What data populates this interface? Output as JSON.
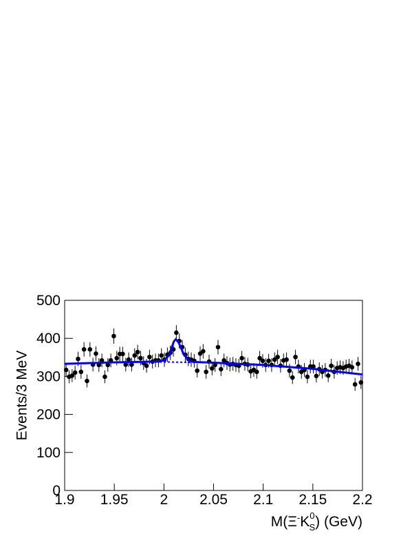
{
  "chart_data": {
    "type": "scatter",
    "y_label": "Events/3 MeV",
    "x_label": {
      "prefix": "M(Ξ",
      "sup1": "-",
      "main": "K",
      "sub": "S",
      "sup2": "0",
      "suffix": ") (GeV)"
    },
    "xlim": [
      1.9,
      2.2
    ],
    "ylim": [
      0,
      500
    ],
    "xticks": [
      1.9,
      1.95,
      2,
      2.05,
      2.1,
      2.15,
      2.2
    ],
    "yticks": [
      0,
      100,
      200,
      300,
      400,
      500
    ],
    "series": [
      {
        "kind": "points",
        "color": "#000000",
        "x": [
          1.9015,
          1.9045,
          1.9075,
          1.9105,
          1.9135,
          1.9165,
          1.9195,
          1.9225,
          1.9255,
          1.9285,
          1.9315,
          1.9345,
          1.9375,
          1.9405,
          1.9435,
          1.9465,
          1.9495,
          1.9525,
          1.9555,
          1.9585,
          1.9615,
          1.9645,
          1.9675,
          1.9705,
          1.9735,
          1.9765,
          1.9795,
          1.9825,
          1.9855,
          1.9885,
          1.9915,
          1.9945,
          1.9975,
          2.0005,
          2.0035,
          2.0065,
          2.0095,
          2.0125,
          2.0155,
          2.0185,
          2.0215,
          2.0245,
          2.0275,
          2.0305,
          2.0335,
          2.0365,
          2.0395,
          2.0425,
          2.0455,
          2.0485,
          2.0515,
          2.0545,
          2.0575,
          2.0605,
          2.0635,
          2.0665,
          2.0695,
          2.0725,
          2.0755,
          2.0785,
          2.0815,
          2.0845,
          2.0875,
          2.0905,
          2.0935,
          2.0965,
          2.0995,
          2.1025,
          2.1055,
          2.1085,
          2.1115,
          2.1145,
          2.1175,
          2.1205,
          2.1235,
          2.1265,
          2.1295,
          2.1325,
          2.1355,
          2.1385,
          2.1415,
          2.1445,
          2.1475,
          2.1505,
          2.1535,
          2.1565,
          2.1595,
          2.1625,
          2.1655,
          2.1685,
          2.1715,
          2.1745,
          2.1775,
          2.1805,
          2.1835,
          2.1865,
          2.1895,
          2.1925,
          2.1955,
          2.1985
        ],
        "values": [
          317,
          299,
          302,
          310,
          346,
          312,
          371,
          288,
          371,
          331,
          360,
          330,
          342,
          299,
          330,
          342,
          406,
          348,
          359,
          359,
          331,
          344,
          331,
          355,
          364,
          348,
          335,
          328,
          351,
          339,
          342,
          342,
          355,
          344,
          357,
          362,
          371,
          415,
          393,
          377,
          357,
          346,
          344,
          341,
          315,
          360,
          366,
          312,
          339,
          321,
          330,
          377,
          319,
          342,
          335,
          331,
          333,
          330,
          328,
          348,
          333,
          331,
          313,
          317,
          312,
          348,
          341,
          330,
          341,
          330,
          344,
          351,
          328,
          342,
          344,
          315,
          297,
          351,
          326,
          312,
          317,
          299,
          326,
          326,
          301,
          319,
          312,
          317,
          302,
          328,
          312,
          322,
          324,
          322,
          326,
          328,
          324,
          279,
          333,
          284
        ],
        "errors": [
          18,
          17,
          17,
          18,
          19,
          18,
          19,
          17,
          19,
          18,
          19,
          18,
          18,
          17,
          18,
          18,
          20,
          19,
          19,
          19,
          18,
          19,
          18,
          19,
          19,
          19,
          18,
          18,
          19,
          18,
          18,
          18,
          19,
          19,
          19,
          19,
          19,
          20,
          20,
          19,
          19,
          19,
          19,
          18,
          18,
          19,
          19,
          18,
          18,
          18,
          18,
          19,
          18,
          18,
          18,
          18,
          18,
          18,
          18,
          19,
          18,
          18,
          18,
          18,
          18,
          19,
          18,
          18,
          18,
          18,
          19,
          19,
          18,
          18,
          19,
          18,
          17,
          19,
          18,
          18,
          18,
          17,
          18,
          18,
          17,
          18,
          18,
          18,
          17,
          18,
          18,
          18,
          18,
          18,
          18,
          18,
          18,
          17,
          18,
          17
        ]
      },
      {
        "kind": "fit",
        "color": "#0000ff",
        "dashed": false,
        "x": [
          1.9,
          1.95,
          1.99,
          2.0,
          2.005,
          2.01,
          2.012,
          2.015,
          2.02,
          2.025,
          2.03,
          2.05,
          2.1,
          2.15,
          2.2
        ],
        "values": [
          333,
          337,
          339,
          342,
          355,
          392,
          398,
          388,
          358,
          342,
          338,
          336,
          330,
          320,
          305
        ]
      },
      {
        "kind": "fit",
        "color": "#0000ff",
        "dashed": true,
        "x": [
          1.9,
          1.95,
          2.0,
          2.05,
          2.1,
          2.15,
          2.2
        ],
        "values": [
          333,
          337,
          338,
          336,
          330,
          320,
          305
        ]
      }
    ]
  }
}
